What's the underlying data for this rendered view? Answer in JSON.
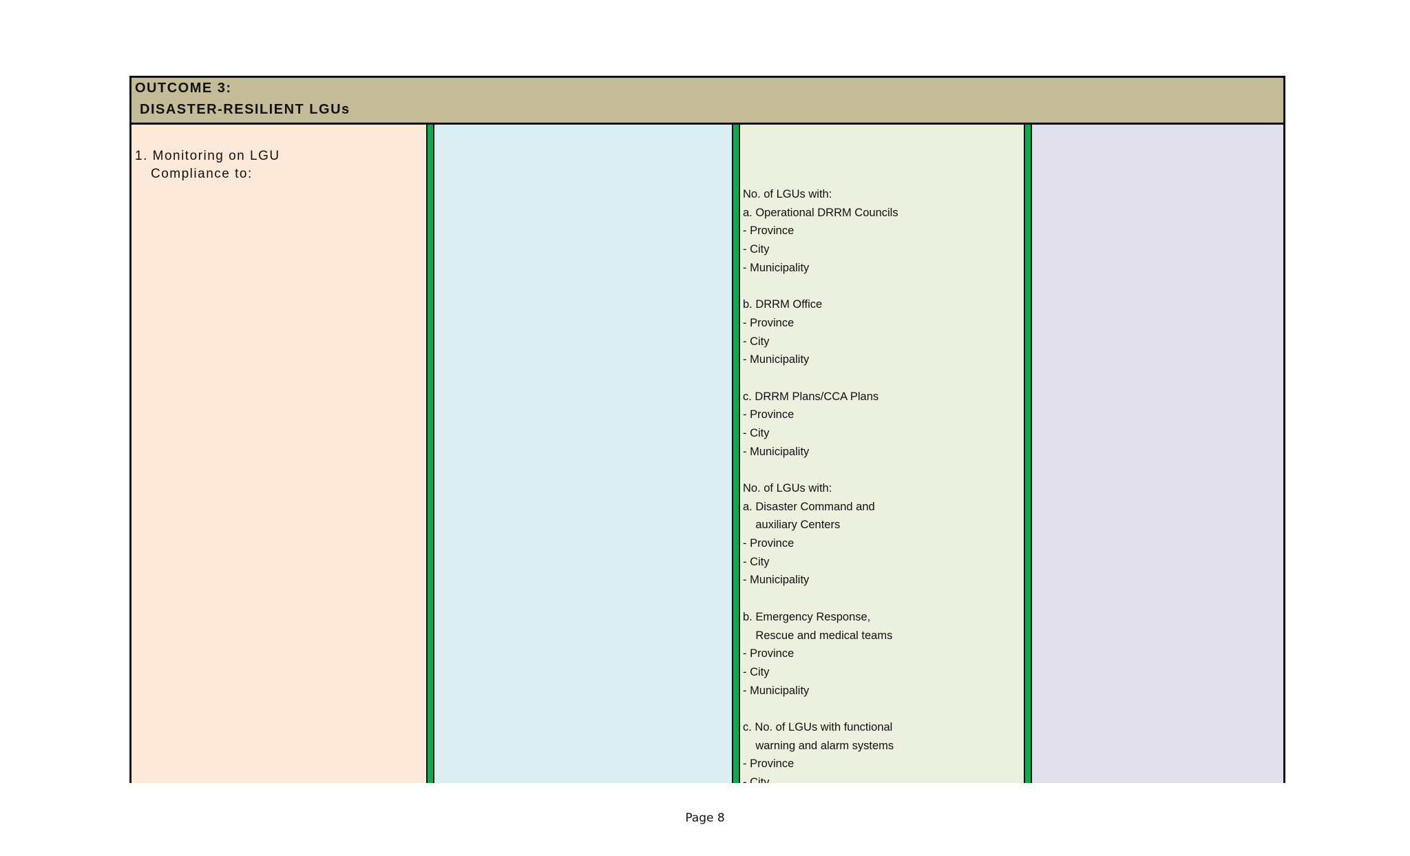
{
  "outcome": {
    "label": "OUTCOME 3:",
    "title": "DISASTER-RESILIENT LGUs"
  },
  "column1": {
    "line1": "1. Monitoring on LGU",
    "line2": "Compliance to:"
  },
  "indicators": [
    "No. of LGUs with:",
    "a. Operational DRRM Councils",
    "- Province",
    "- City",
    "- Municipality",
    "",
    "b. DRRM Office",
    "- Province",
    "- City",
    "- Municipality",
    "",
    "c. DRRM Plans/CCA Plans",
    "- Province",
    "- City",
    "- Municipality",
    "",
    "No. of LGUs with:",
    "a. Disaster Command and",
    "    auxiliary Centers",
    "- Province",
    "- City",
    "- Municipality",
    "",
    "b. Emergency Response,",
    "    Rescue and medical teams",
    "- Province",
    "- City",
    "- Municipality",
    "",
    "c. No. of LGUs with functional",
    "    warning and alarm systems",
    "- Province",
    "- City"
  ],
  "footer": {
    "page": "Page 8"
  }
}
